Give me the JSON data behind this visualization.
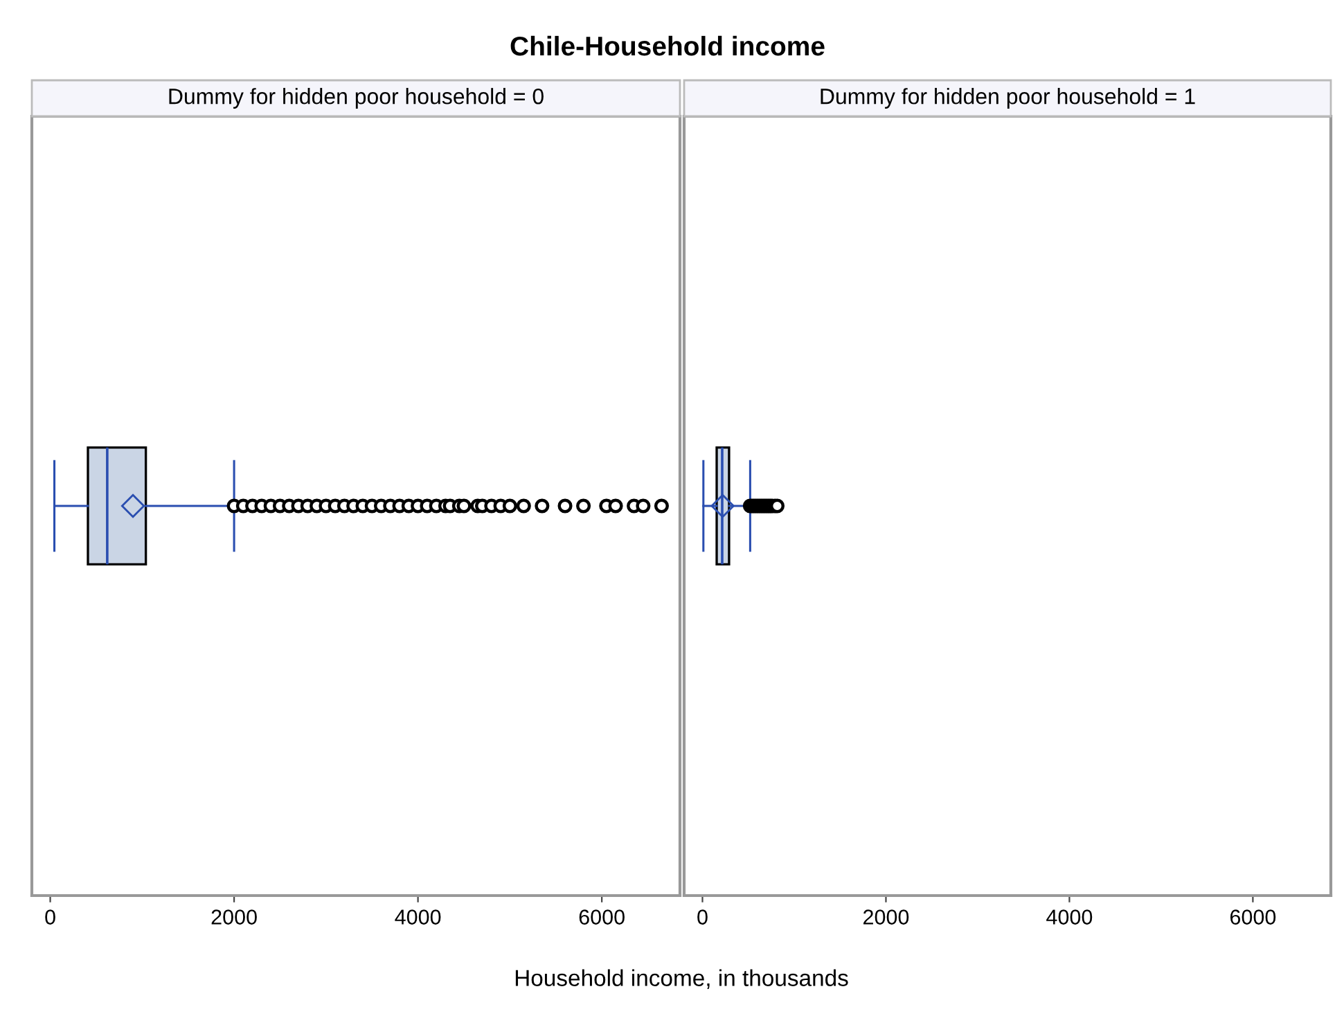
{
  "chart_data": [
    {
      "type": "box",
      "title": "Chile-Household income",
      "subtitle": "Dummy for hidden poor household = 0",
      "xlabel": "Household income, in thousands",
      "orientation": "horizontal",
      "categories": [
        null
      ],
      "tick_labels": "x",
      "grid": false,
      "xlim": [
        -200,
        6850
      ],
      "xticks": [
        0,
        2000,
        4000,
        6000
      ],
      "series": [
        {
          "color": "#cad5e5",
          "boxes": [
            {
              "low": 45,
              "q1": 410,
              "median": 620,
              "q3": 1040,
              "high": 2000,
              "mean": 900,
              "outliers": [
                2000,
                2100,
                2200,
                2300,
                2400,
                2500,
                2600,
                2700,
                2800,
                2900,
                3000,
                3100,
                3200,
                3300,
                3400,
                3500,
                3600,
                3700,
                3800,
                3900,
                4000,
                4100,
                4200,
                4300,
                4350,
                4450,
                4500,
                4650,
                4700,
                4800,
                4900,
                5000,
                5150,
                5350,
                5600,
                5800,
                6050,
                6150,
                6350,
                6450,
                6650
              ]
            }
          ]
        }
      ]
    },
    {
      "type": "box",
      "subtitle": "Dummy for hidden poor household = 1",
      "orientation": "horizontal",
      "categories": [
        null
      ],
      "tick_labels": "x",
      "grid": false,
      "xlim": [
        -200,
        6850
      ],
      "xticks": [
        0,
        2000,
        4000,
        6000
      ],
      "series": [
        {
          "color": "#cad5e5",
          "boxes": [
            {
              "low": 10,
              "q1": 155,
              "median": 215,
              "q3": 290,
              "high": 520,
              "mean": 220,
              "outliers": [
                520,
                540,
                560,
                580,
                600,
                620,
                640,
                660,
                680,
                700,
                720,
                740,
                760,
                790,
                815
              ]
            }
          ]
        }
      ]
    }
  ]
}
